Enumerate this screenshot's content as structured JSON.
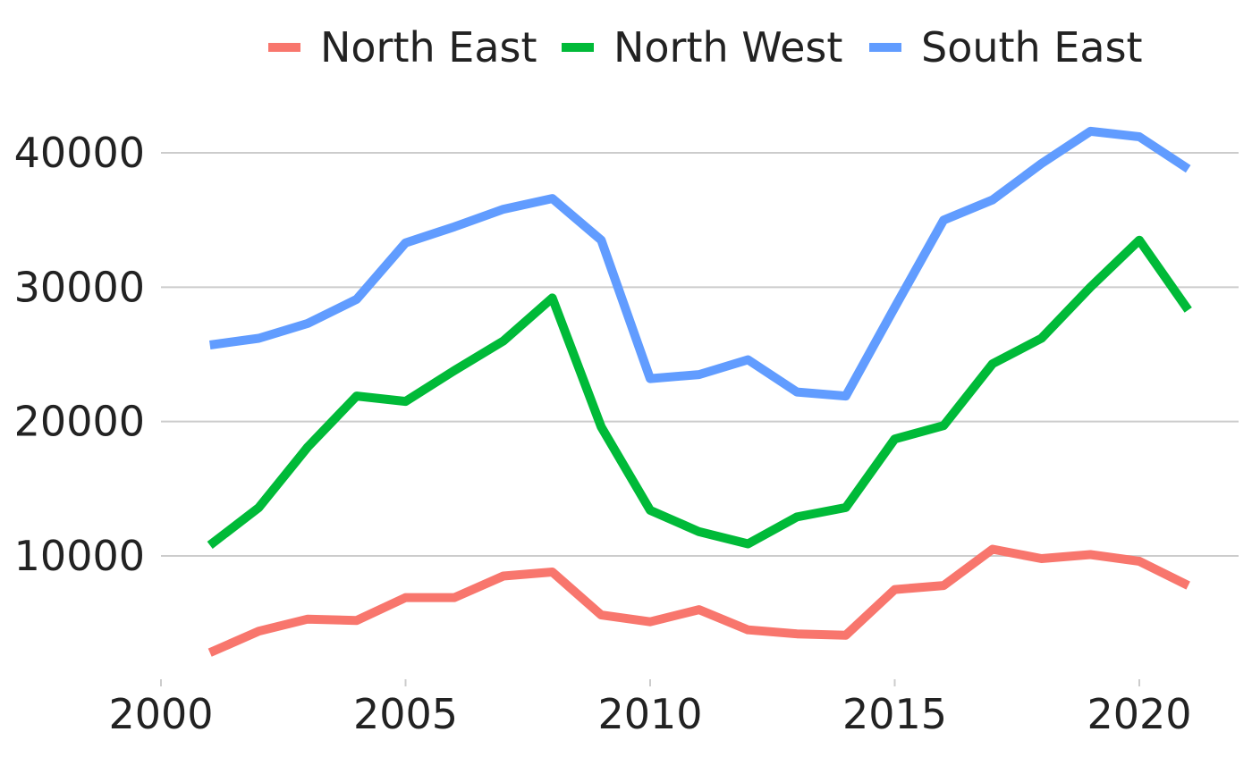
{
  "chart_data": {
    "type": "line",
    "title": "",
    "xlabel": "",
    "ylabel": "",
    "xlim": [
      2000,
      2022
    ],
    "ylim": [
      1000,
      43000
    ],
    "x_ticks": [
      "2000",
      "2005",
      "2010",
      "2015",
      "2020"
    ],
    "y_ticks": [
      "10000",
      "20000",
      "30000",
      "40000"
    ],
    "grid": "horizontal",
    "legend_position": "top",
    "x": [
      2001,
      2002,
      2003,
      2004,
      2005,
      2006,
      2007,
      2008,
      2009,
      2010,
      2011,
      2012,
      2013,
      2014,
      2015,
      2016,
      2017,
      2018,
      2019,
      2020,
      2021
    ],
    "series": [
      {
        "name": "North East",
        "color": "#F8766D",
        "values": [
          2800,
          4400,
          5300,
          5200,
          6900,
          6900,
          8500,
          8800,
          5600,
          5100,
          6000,
          4500,
          4200,
          4100,
          7500,
          7800,
          10500,
          9800,
          10100,
          9600,
          7800
        ]
      },
      {
        "name": "North West",
        "color": "#00BA38",
        "values": [
          10800,
          13600,
          18100,
          21900,
          21500,
          23800,
          26000,
          29200,
          19600,
          13400,
          11800,
          10900,
          12900,
          13600,
          18700,
          19700,
          24300,
          26200,
          30000,
          33500,
          28300
        ]
      },
      {
        "name": "South East",
        "color": "#619CFF",
        "values": [
          25700,
          26200,
          27300,
          29100,
          33300,
          34500,
          35800,
          36600,
          33500,
          23200,
          23500,
          24600,
          22200,
          21900,
          28500,
          35000,
          36500,
          39200,
          41600,
          41200,
          38800
        ]
      }
    ]
  }
}
